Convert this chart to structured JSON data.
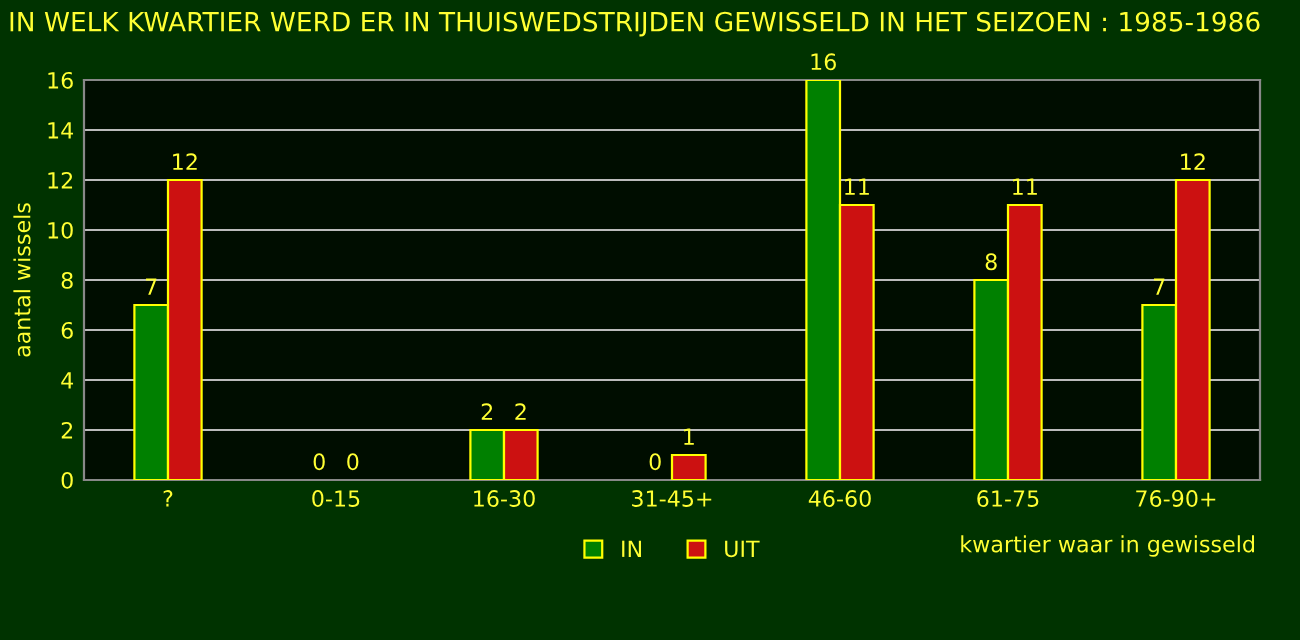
{
  "chart_data": {
    "type": "bar",
    "title": "IN WELK KWARTIER WERD ER IN THUISWEDSTRIJDEN GEWISSELD IN HET SEIZOEN : 1985-1986",
    "xlabel": "kwartier waar in gewisseld",
    "ylabel": "aantal wissels",
    "categories": [
      "?",
      "0-15",
      "16-30",
      "31-45+",
      "46-60",
      "61-75",
      "76-90+"
    ],
    "series": [
      {
        "name": "IN",
        "color": "#008000",
        "values": [
          7,
          0,
          2,
          0,
          16,
          8,
          7
        ]
      },
      {
        "name": "UIT",
        "color": "#cc1111",
        "values": [
          12,
          0,
          2,
          1,
          11,
          11,
          12
        ]
      }
    ],
    "ylim": [
      0,
      16
    ],
    "yticks": [
      0,
      2,
      4,
      6,
      8,
      10,
      12,
      14,
      16
    ],
    "grid": "y",
    "legend": "bottom",
    "data_labels": true
  }
}
